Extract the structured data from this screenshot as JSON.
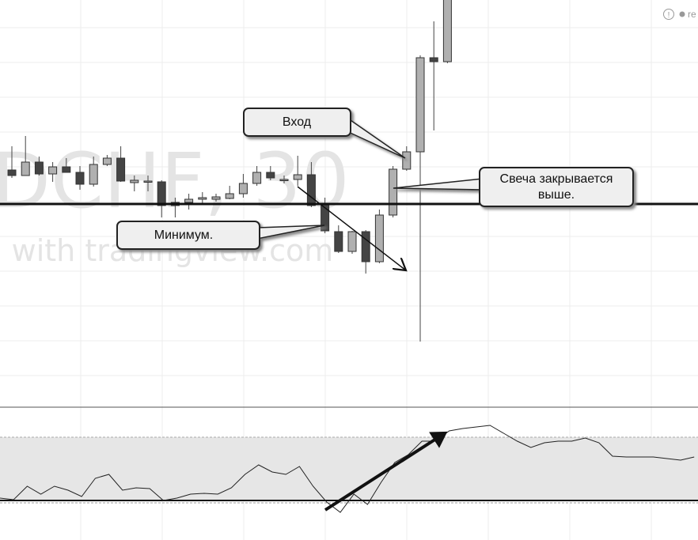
{
  "badge": "re",
  "chart_data": [
    {
      "type": "candlestick",
      "open": [
        300,
        293,
        310,
        295,
        304,
        297,
        282,
        307,
        315,
        284,
        286,
        285,
        255,
        259,
        263,
        263,
        264,
        270,
        283,
        297,
        288,
        288,
        294,
        257,
        222,
        197,
        222,
        184,
        243,
        301,
        323,
        442,
        437
      ],
      "high": [
        330,
        343,
        317,
        310,
        315,
        305,
        317,
        319,
        330,
        293,
        293,
        287,
        265,
        270,
        272,
        270,
        280,
        295,
        305,
        305,
        293,
        318,
        310,
        265,
        230,
        223,
        224,
        250,
        305,
        330,
        445,
        488,
        555
      ],
      "low": [
        290,
        293,
        293,
        285,
        297,
        275,
        279,
        305,
        285,
        273,
        273,
        240,
        240,
        250,
        257,
        260,
        263,
        265,
        280,
        287,
        283,
        280,
        253,
        220,
        195,
        194,
        169,
        182,
        240,
        299,
        83,
        350,
        435
      ],
      "close": [
        293,
        310,
        295,
        304,
        297,
        282,
        307,
        315,
        286,
        287,
        286,
        255,
        259,
        263,
        265,
        266,
        270,
        283,
        297,
        290,
        288,
        294,
        255,
        223,
        197,
        222,
        184,
        243,
        301,
        323,
        442,
        437,
        535
      ],
      "ylim": [
        0,
        515
      ],
      "hline": 257,
      "watermark": [
        "DCHF, 30",
        "l with tradingview.com"
      ],
      "annotations": [
        "Вход",
        "Свеча закрывается выше.",
        "Минимум."
      ]
    },
    {
      "type": "line",
      "values": [
        53,
        51,
        68,
        58,
        68,
        63,
        55,
        78,
        83,
        63,
        66,
        65,
        50,
        53,
        58,
        59,
        58,
        66,
        83,
        95,
        86,
        83,
        93,
        68,
        48,
        35,
        58,
        45,
        73,
        98,
        108,
        125,
        125,
        138,
        141,
        143,
        145,
        135,
        125,
        117,
        123,
        125,
        125,
        129,
        123,
        106,
        105,
        105,
        105,
        103,
        101,
        105
      ],
      "ylim": [
        0,
        168
      ],
      "band": [
        50,
        130
      ],
      "color": "#222"
    }
  ]
}
